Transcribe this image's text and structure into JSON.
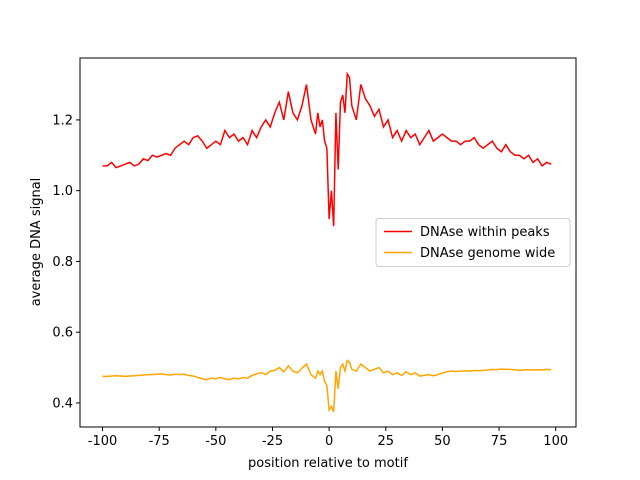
{
  "chart_data": {
    "type": "line",
    "xlabel": "position relative to motif",
    "ylabel": "average DNA signal",
    "x": [
      -100,
      -98,
      -96,
      -94,
      -92,
      -90,
      -88,
      -86,
      -84,
      -82,
      -80,
      -78,
      -76,
      -74,
      -72,
      -70,
      -68,
      -66,
      -64,
      -62,
      -60,
      -58,
      -56,
      -54,
      -52,
      -50,
      -48,
      -46,
      -44,
      -42,
      -40,
      -38,
      -36,
      -34,
      -32,
      -30,
      -28,
      -26,
      -24,
      -22,
      -20,
      -18,
      -16,
      -14,
      -12,
      -10,
      -8,
      -6,
      -5,
      -4,
      -3,
      -2,
      -1,
      0,
      1,
      2,
      3,
      4,
      5,
      6,
      7,
      8,
      9,
      10,
      12,
      14,
      16,
      18,
      20,
      22,
      24,
      26,
      28,
      30,
      32,
      34,
      36,
      38,
      40,
      42,
      44,
      46,
      48,
      50,
      52,
      54,
      56,
      58,
      60,
      62,
      64,
      66,
      68,
      70,
      72,
      74,
      76,
      78,
      80,
      82,
      84,
      86,
      88,
      90,
      92,
      94,
      96,
      98
    ],
    "series": [
      {
        "name": "DNAse within peaks",
        "color": "#ff0000",
        "values": [
          1.07,
          1.07,
          1.08,
          1.065,
          1.07,
          1.075,
          1.08,
          1.07,
          1.075,
          1.09,
          1.085,
          1.1,
          1.095,
          1.1,
          1.105,
          1.1,
          1.12,
          1.13,
          1.14,
          1.13,
          1.15,
          1.155,
          1.14,
          1.12,
          1.13,
          1.14,
          1.13,
          1.17,
          1.15,
          1.16,
          1.14,
          1.15,
          1.13,
          1.17,
          1.15,
          1.18,
          1.2,
          1.18,
          1.22,
          1.25,
          1.2,
          1.28,
          1.22,
          1.2,
          1.24,
          1.3,
          1.2,
          1.16,
          1.22,
          1.18,
          1.2,
          1.14,
          1.12,
          0.92,
          1.0,
          0.9,
          1.22,
          1.06,
          1.25,
          1.27,
          1.22,
          1.33,
          1.32,
          1.24,
          1.2,
          1.3,
          1.26,
          1.24,
          1.21,
          1.23,
          1.18,
          1.2,
          1.15,
          1.17,
          1.14,
          1.17,
          1.15,
          1.16,
          1.13,
          1.15,
          1.17,
          1.14,
          1.15,
          1.16,
          1.15,
          1.14,
          1.14,
          1.13,
          1.14,
          1.14,
          1.15,
          1.13,
          1.12,
          1.13,
          1.14,
          1.12,
          1.11,
          1.13,
          1.11,
          1.1,
          1.1,
          1.09,
          1.1,
          1.08,
          1.09,
          1.07,
          1.08,
          1.075
        ]
      },
      {
        "name": "DNAse genome wide",
        "color": "#ffa500",
        "values": [
          0.475,
          0.475,
          0.476,
          0.477,
          0.476,
          0.475,
          0.476,
          0.477,
          0.478,
          0.479,
          0.48,
          0.48,
          0.481,
          0.482,
          0.48,
          0.479,
          0.481,
          0.48,
          0.481,
          0.478,
          0.476,
          0.472,
          0.468,
          0.466,
          0.47,
          0.468,
          0.472,
          0.468,
          0.466,
          0.47,
          0.468,
          0.472,
          0.47,
          0.478,
          0.482,
          0.486,
          0.48,
          0.49,
          0.492,
          0.5,
          0.488,
          0.505,
          0.49,
          0.485,
          0.498,
          0.51,
          0.48,
          0.47,
          0.49,
          0.48,
          0.49,
          0.46,
          0.45,
          0.38,
          0.39,
          0.375,
          0.49,
          0.44,
          0.5,
          0.51,
          0.49,
          0.52,
          0.515,
          0.495,
          0.49,
          0.51,
          0.5,
          0.49,
          0.495,
          0.5,
          0.485,
          0.49,
          0.48,
          0.485,
          0.478,
          0.488,
          0.48,
          0.485,
          0.476,
          0.478,
          0.48,
          0.477,
          0.48,
          0.485,
          0.488,
          0.49,
          0.489,
          0.49,
          0.491,
          0.49,
          0.492,
          0.491,
          0.492,
          0.493,
          0.495,
          0.494,
          0.496,
          0.495,
          0.495,
          0.494,
          0.492,
          0.493,
          0.494,
          0.493,
          0.494,
          0.493,
          0.495,
          0.494
        ]
      }
    ],
    "xlim": [
      -109.95,
      108.95
    ],
    "xticks": [
      -100,
      -75,
      -50,
      -25,
      0,
      25,
      50,
      75,
      100
    ],
    "ylim": [
      0.332,
      1.375
    ],
    "yticks": [
      0.4,
      0.6,
      0.8,
      {
        "value": 1,
        "label": "1.0"
      },
      1.2
    ],
    "legend": "center right"
  }
}
